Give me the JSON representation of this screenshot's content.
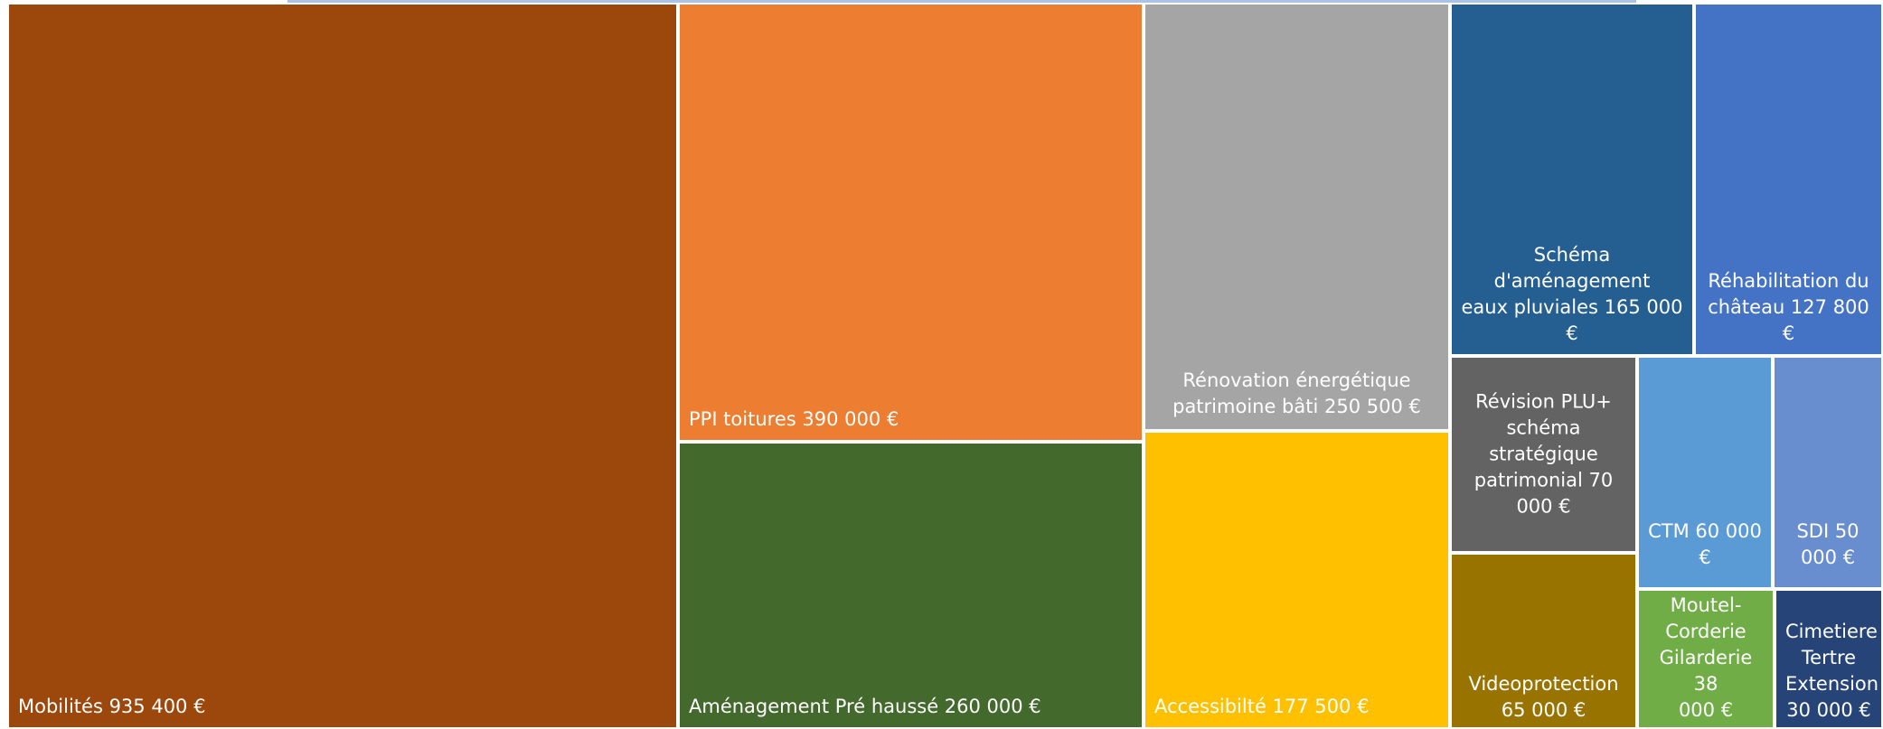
{
  "chart_data": {
    "type": "treemap",
    "items": [
      {
        "name": "Mobilités",
        "value": 935400,
        "label": "Mobilités  935 400 €",
        "color": "#9c470c"
      },
      {
        "name": "PPI toitures",
        "value": 390000,
        "label": "PPI toitures  390 000 €",
        "color": "#ed7d31"
      },
      {
        "name": "Aménagement Pré haussé",
        "value": 260000,
        "label": "Aménagement Pré haussé  260 000 €",
        "color": "#43692d"
      },
      {
        "name": "Rénovation énergétique patrimoine bâti",
        "value": 250500,
        "label": "Rénovation énergétique\npatrimoine bâti  250 500 €",
        "color": "#a5a5a5"
      },
      {
        "name": "Accessibilté",
        "value": 177500,
        "label": "Accessibilté  177 500 €",
        "color": "#ffc000"
      },
      {
        "name": "Schéma d'aménagement eaux pluviales",
        "value": 165000,
        "label": "Schéma d'aménagement\neaux pluviales  165 000 €",
        "color": "#255e91"
      },
      {
        "name": "Réhabilitation du château",
        "value": 127800,
        "label": "Réhabilitation du\nchâteau  127 800 €",
        "color": "#4472c4"
      },
      {
        "name": "Révision PLU+ schéma stratégique patrimonial",
        "value": 70000,
        "label": "Révision PLU+\nschéma\nstratégique\npatrimonial  70\n000 €",
        "color": "#636363"
      },
      {
        "name": "Videoprotection",
        "value": 65000,
        "label": "Videoprotection\n65 000 €",
        "color": "#997300"
      },
      {
        "name": "CTM",
        "value": 60000,
        "label": "CTM  60 000\n€",
        "color": "#5b9bd5"
      },
      {
        "name": "SDI",
        "value": 50000,
        "label": "SDI  50\n000 €",
        "color": "#698ed0"
      },
      {
        "name": "Moutel-Corderie Gilarderie",
        "value": 38000,
        "label": "Moutel-\nCorderie\nGilarderie  38\n000 €",
        "color": "#70ad47"
      },
      {
        "name": "Cimetiere Tertre Extension",
        "value": 30000,
        "label": "Cimetiere\nTertre\nExtension\n30 000 €",
        "color": "#264478"
      }
    ]
  }
}
